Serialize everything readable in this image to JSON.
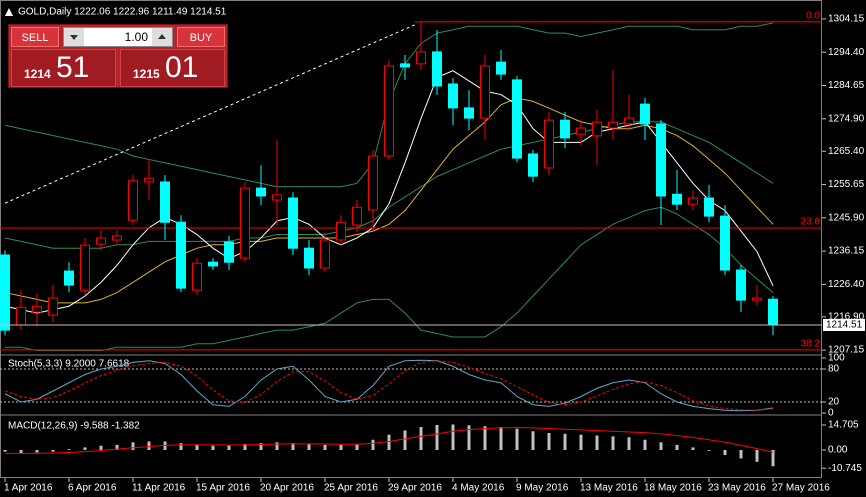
{
  "header": "GOLD,Daily  1222.06 1222.96 1211.49 1214.51",
  "trade_panel": {
    "sell": "SELL",
    "buy": "BUY",
    "lot": "1.00",
    "bid_main": "1214",
    "bid_pips": "51",
    "ask_main": "1215",
    "ask_pips": "01"
  },
  "chart_data": [
    {
      "type": "candlestick",
      "categories": [
        "1 Apr 2016",
        null,
        null,
        null,
        "6 Apr 2016",
        null,
        null,
        null,
        "11 Apr 2016",
        null,
        null,
        null,
        "15 Apr 2016",
        null,
        null,
        null,
        "20 Apr 2016",
        null,
        null,
        null,
        "25 Apr 2016",
        null,
        null,
        null,
        "29 Apr 2016",
        null,
        null,
        null,
        "4 May 2016",
        null,
        null,
        null,
        "9 May 2016",
        null,
        null,
        null,
        "13 May 2016",
        null,
        null,
        null,
        "18 May 2016",
        null,
        null,
        null,
        "23 May 2016",
        null,
        null,
        null,
        "27 May 2016"
      ],
      "open": [
        1235.0,
        1214.5,
        1218.3,
        1217.4,
        1230.3,
        1224.7,
        1238.2,
        1239.4,
        1245.2,
        1256.4,
        1256.4,
        1244.6,
        1224.7,
        1232.9,
        1238.8,
        1234.1,
        1254.6,
        1251.1,
        1251.7,
        1237.0,
        1231.2,
        1239.4,
        1243.8,
        1248.2,
        1264.0,
        1291.0,
        1291.0,
        1294.5,
        1285.1,
        1278.1,
        1275.1,
        1291.5,
        1286.3,
        1264.6,
        1260.5,
        1274.5,
        1270.4,
        1269.9,
        1272.2,
        1273.4,
        1279.2,
        1273.4,
        1252.8,
        1249.9,
        1251.7,
        1246.4,
        1230.6,
        1221.8,
        1222.06
      ],
      "high": [
        1236.4,
        1224.7,
        1223.8,
        1226.2,
        1232.9,
        1240.0,
        1242.3,
        1242.3,
        1258.4,
        1262.8,
        1258.4,
        1246.7,
        1234.1,
        1234.1,
        1240.6,
        1256.4,
        1261.3,
        1268.7,
        1253.4,
        1239.4,
        1241.7,
        1246.7,
        1251.1,
        1265.8,
        1292.1,
        1293.6,
        1303.3,
        1300.9,
        1286.9,
        1283.3,
        1293.6,
        1295.1,
        1287.4,
        1265.8,
        1276.9,
        1276.9,
        1274.5,
        1277.5,
        1289.2,
        1281.9,
        1281.0,
        1274.5,
        1259.9,
        1254.0,
        1255.5,
        1249.6,
        1232.1,
        1226.2,
        1222.96
      ],
      "low": [
        1211.5,
        1213.0,
        1214.2,
        1215.3,
        1224.1,
        1223.3,
        1236.4,
        1237.9,
        1243.8,
        1251.1,
        1239.4,
        1224.1,
        1223.3,
        1230.6,
        1230.6,
        1232.9,
        1249.6,
        1243.8,
        1235.0,
        1229.1,
        1230.0,
        1237.9,
        1241.7,
        1242.3,
        1262.8,
        1286.3,
        1289.2,
        1281.9,
        1273.1,
        1271.6,
        1268.7,
        1286.3,
        1262.2,
        1256.4,
        1258.4,
        1266.3,
        1267.2,
        1261.4,
        1268.7,
        1271.6,
        1268.7,
        1243.8,
        1248.2,
        1248.2,
        1244.6,
        1229.1,
        1218.3,
        1220.3,
        1211.49
      ],
      "close": [
        1213.0,
        1219.7,
        1220.0,
        1222.4,
        1226.2,
        1237.9,
        1240.0,
        1240.6,
        1256.9,
        1257.5,
        1244.6,
        1225.3,
        1232.6,
        1231.8,
        1232.9,
        1254.6,
        1252.3,
        1252.6,
        1237.0,
        1231.2,
        1239.4,
        1244.6,
        1249.0,
        1264.0,
        1290.4,
        1290.1,
        1294.5,
        1284.5,
        1278.1,
        1275.1,
        1290.4,
        1288.0,
        1263.4,
        1258.1,
        1274.5,
        1269.3,
        1272.2,
        1273.9,
        1273.9,
        1275.1,
        1273.4,
        1252.3,
        1249.9,
        1251.7,
        1246.4,
        1230.6,
        1221.8,
        1222.4,
        1214.51
      ],
      "up_color": "#ff0000",
      "down_color": "#00ffff",
      "series": [
        {
          "color": "#2e8b57",
          "values": [
            1273,
            1272,
            1271,
            1270,
            1269,
            1268,
            1267,
            1266,
            1264,
            1263,
            1262,
            1261,
            1260,
            1259,
            1258,
            1257,
            1256,
            1255,
            1255,
            1255,
            1255,
            1255,
            1256,
            1262,
            1280,
            1291,
            1297,
            1300,
            1301,
            1302,
            1302,
            1302,
            1302,
            1301,
            1300,
            1300,
            1299,
            1300,
            1301,
            1302,
            1302,
            1302,
            1302,
            1301,
            1301,
            1301,
            1302,
            1302,
            1303
          ]
        },
        {
          "color": "#2e8b57",
          "values": [
            1240,
            1239,
            1238,
            1237,
            1237,
            1237,
            1237,
            1238,
            1238,
            1239,
            1239,
            1239,
            1239,
            1239,
            1239,
            1240,
            1240,
            1241,
            1241,
            1241,
            1241,
            1242,
            1243,
            1245,
            1249,
            1252,
            1255,
            1258,
            1260,
            1262,
            1264,
            1266,
            1267,
            1268,
            1269,
            1270,
            1271,
            1272,
            1273,
            1274,
            1274,
            1274,
            1272,
            1270,
            1268,
            1265,
            1262,
            1259,
            1256
          ]
        },
        {
          "color": "#2e8b57",
          "values": [
            1208,
            1208,
            1207,
            1207,
            1207,
            1207,
            1207,
            1208,
            1208,
            1208,
            1208,
            1208,
            1209,
            1209,
            1210,
            1211,
            1212,
            1213,
            1213,
            1214,
            1215,
            1218,
            1221,
            1222,
            1222,
            1218,
            1213,
            1212,
            1211,
            1211,
            1211,
            1214,
            1218,
            1223,
            1228,
            1233,
            1238,
            1241,
            1244,
            1246,
            1248,
            1249,
            1247,
            1244,
            1241,
            1237,
            1232,
            1228,
            1224
          ]
        },
        {
          "color": "#e0b030",
          "values": [
            1224,
            1223,
            1222,
            1221,
            1221,
            1221,
            1222,
            1224,
            1227,
            1230,
            1233,
            1235,
            1237,
            1238,
            1238,
            1239,
            1239,
            1240,
            1240,
            1240,
            1240,
            1240,
            1241,
            1242,
            1244,
            1248,
            1254,
            1260,
            1266,
            1270,
            1274,
            1279,
            1281,
            1280,
            1278,
            1276,
            1274,
            1273,
            1272,
            1272,
            1273,
            1272,
            1270,
            1267,
            1263,
            1259,
            1254,
            1249,
            1244
          ]
        },
        {
          "color": "#ffffff",
          "values": [
            1220,
            1219,
            1218,
            1219,
            1220,
            1223,
            1227,
            1232,
            1238,
            1243,
            1246,
            1244,
            1241,
            1237,
            1234,
            1236,
            1240,
            1245,
            1246,
            1244,
            1240,
            1238,
            1240,
            1243,
            1250,
            1262,
            1275,
            1287,
            1289,
            1286,
            1283,
            1282,
            1279,
            1272,
            1268,
            1268,
            1268,
            1271,
            1272,
            1273,
            1274,
            1268,
            1262,
            1256,
            1251,
            1248,
            1242,
            1236,
            1226
          ]
        }
      ],
      "trendline": {
        "x": [
          0,
          25.6
        ],
        "values": [
          1250.2,
          1302.4
        ],
        "color": "#ffffff"
      },
      "fibo_levels": [
        {
          "label": "0.0",
          "value": 1303.3
        },
        {
          "label": "23.6",
          "value": 1242.9
        },
        {
          "label": "38.2",
          "value": 1207.2
        }
      ],
      "fibo_color": "#ff0000",
      "ylim": [
        1206.3,
        1309.7
      ],
      "yticks": [
        1304.15,
        {
          "value": 1294.4,
          "label": "1294.40"
        },
        1284.65,
        {
          "value": 1274.9,
          "label": "1274.90"
        },
        {
          "value": 1265.4,
          "label": "1265.40"
        },
        1255.65,
        {
          "value": 1245.9,
          "label": "1245.90"
        },
        1236.15,
        {
          "value": 1226.4,
          "label": "1226.40"
        },
        {
          "value": 1216.9,
          "label": "1216.90"
        },
        1207.15
      ]
    },
    {
      "type": "line",
      "title": "Stoch(5,3,3) 9.2000 7.6618",
      "series": [
        {
          "color": "#5fa8c8",
          "line_style": "solid",
          "values": [
            35,
            20,
            25,
            40,
            55,
            70,
            80,
            85,
            92,
            95,
            90,
            70,
            40,
            15,
            12,
            30,
            60,
            80,
            85,
            60,
            30,
            20,
            25,
            50,
            85,
            95,
            96,
            95,
            85,
            70,
            60,
            55,
            30,
            15,
            12,
            18,
            30,
            45,
            55,
            60,
            55,
            35,
            20,
            12,
            8,
            5,
            4,
            5,
            9.2
          ]
        },
        {
          "color": "#ff0000",
          "line_style": "dashed",
          "values": [
            40,
            30,
            25,
            28,
            40,
            55,
            68,
            78,
            86,
            90,
            92,
            85,
            67,
            42,
            22,
            19,
            34,
            57,
            75,
            75,
            58,
            37,
            25,
            32,
            53,
            77,
            92,
            95,
            92,
            83,
            72,
            62,
            48,
            33,
            19,
            15,
            20,
            31,
            43,
            53,
            57,
            50,
            37,
            22,
            13,
            8,
            6,
            5,
            7.6618
          ]
        }
      ],
      "ylim": [
        0,
        100
      ],
      "yticks": [
        100,
        80,
        20,
        0
      ]
    },
    {
      "type": "bar",
      "title": "MACD(12,26,9) -9.588 -1.382",
      "series": [
        {
          "type": "bar",
          "color": "#c0c0c0",
          "values": [
            -1,
            -2,
            -1.5,
            -1,
            0.5,
            1.5,
            2.5,
            3,
            4.5,
            5,
            5,
            4,
            3,
            2.5,
            2.5,
            3.5,
            4,
            4.5,
            4,
            3.5,
            3,
            3,
            3.5,
            6,
            9,
            11.5,
            13.5,
            14.7,
            15,
            14.5,
            14,
            13.5,
            12.5,
            11,
            10,
            9.5,
            9,
            8.5,
            8,
            7.5,
            6,
            4.5,
            3,
            1.5,
            -0.5,
            -3,
            -5,
            -7,
            -9.588
          ]
        },
        {
          "type": "line",
          "color": "#ff0000",
          "values": [
            -2,
            -2,
            -2,
            -1.8,
            -1.5,
            -1,
            -0.3,
            0.5,
            1.3,
            2,
            2.7,
            3,
            3,
            3,
            2.9,
            3,
            3.2,
            3.5,
            3.6,
            3.6,
            3.5,
            3.4,
            3.4,
            3.9,
            5,
            6.5,
            8,
            9.5,
            11,
            12,
            12.6,
            13,
            13.2,
            13,
            12.6,
            12.2,
            11.8,
            11.4,
            11,
            10.6,
            10.2,
            9.5,
            8.5,
            7.4,
            6,
            4.6,
            2.8,
            0.8,
            -1.382
          ]
        }
      ],
      "ylim": [
        -16.5,
        19.4
      ],
      "yticks": [
        14.705,
        {
          "value": 0,
          "label": "0.00"
        },
        -10.745
      ]
    }
  ]
}
